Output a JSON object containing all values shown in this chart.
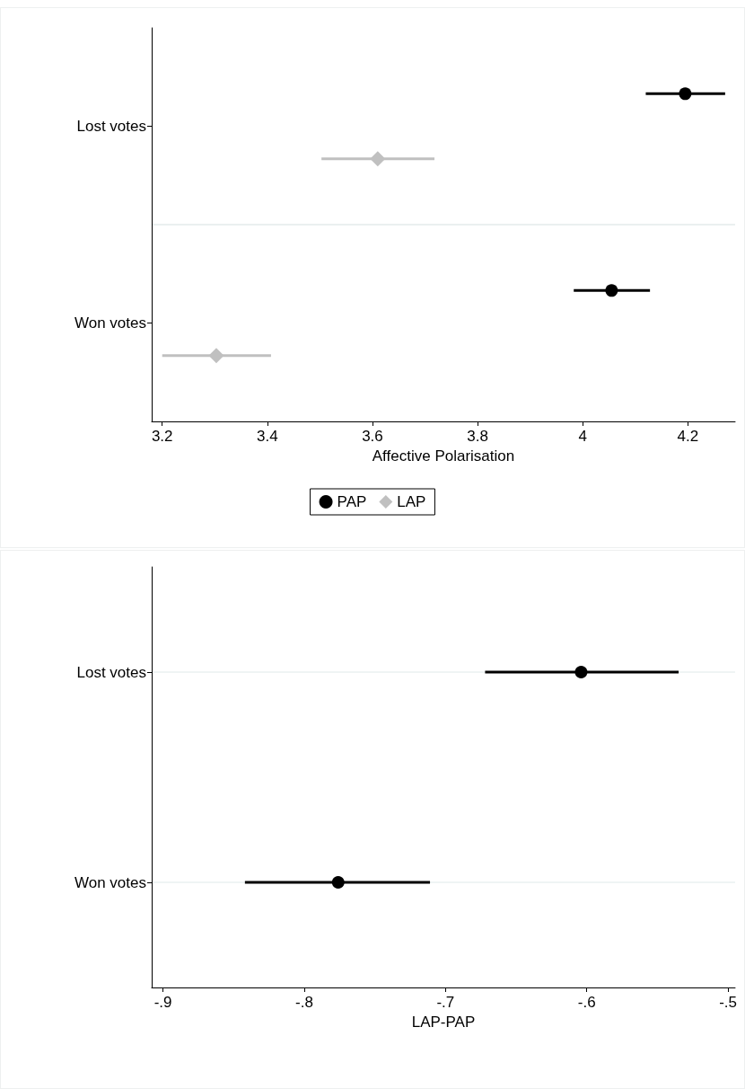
{
  "chart_data": [
    {
      "type": "scatter",
      "orientation": "horizontal",
      "categories": [
        "Lost votes",
        "Won votes"
      ],
      "xlabel": "Affective Polarisation",
      "xlim": [
        3.18,
        4.29
      ],
      "xticks": [
        3.2,
        3.4,
        3.6,
        3.8,
        4,
        4.2
      ],
      "legend": "bottom",
      "series": [
        {
          "name": "PAP",
          "color": "#000000",
          "marker": "circle",
          "values": [
            4.195,
            4.055
          ],
          "errors": [
            [
              4.12,
              4.271
            ],
            [
              3.983,
              4.128
            ]
          ]
        },
        {
          "name": "LAP",
          "color": "#c0c0c0",
          "marker": "diamond",
          "values": [
            3.61,
            3.303
          ],
          "errors": [
            [
              3.503,
              3.718
            ],
            [
              3.2,
              3.407
            ]
          ]
        }
      ]
    },
    {
      "type": "scatter",
      "orientation": "horizontal",
      "categories": [
        "Lost votes",
        "Won votes"
      ],
      "xlabel": "LAP-PAP",
      "xlim": [
        -0.908,
        -0.495
      ],
      "xticks": [
        {
          "value": -0.9,
          "label": "-.9"
        },
        {
          "value": -0.8,
          "label": "-.8"
        },
        {
          "value": -0.7,
          "label": "-.7"
        },
        {
          "value": -0.6,
          "label": "-.6"
        },
        {
          "value": -0.5,
          "label": "-.5"
        }
      ],
      "grid": "y",
      "series": [
        {
          "color": "#000000",
          "marker": "circle",
          "values": [
            -0.604,
            -0.776
          ],
          "errors": [
            [
              -0.672,
              -0.535
            ],
            [
              -0.842,
              -0.711
            ]
          ]
        }
      ]
    }
  ]
}
